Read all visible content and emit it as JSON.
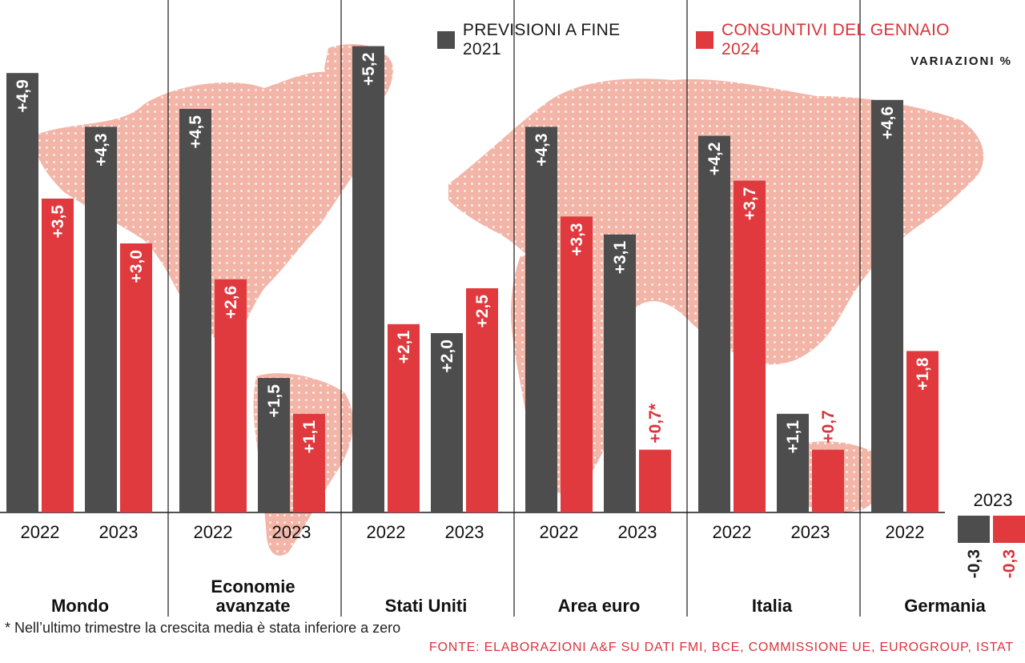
{
  "legend": {
    "forecast": {
      "label": "PREVISIONI A FINE 2021",
      "color": "#4d4d4d"
    },
    "actual": {
      "label": "CONSUNTIVI DEL GENNAIO 2024",
      "color": "#e0393e"
    }
  },
  "unit_label": "VARIAZIONI %",
  "footnote": "* Nell’ultimo trimestre la crescita media è stata inferiore a zero",
  "source": "FONTE: ELABORAZIONI A&F SU DATI FMI, BCE, COMMISSIONE UE, EUROGROUP, ISTAT",
  "colors": {
    "forecast": "#4d4d4d",
    "actual": "#e0393e",
    "map": "#f0b2a6",
    "text_red": "#d8343a"
  },
  "chart_data": {
    "type": "bar",
    "ylabel": "VARIAZIONI %",
    "series": [
      {
        "name": "PREVISIONI A FINE 2021",
        "color": "#4d4d4d"
      },
      {
        "name": "CONSUNTIVI DEL GENNAIO 2024",
        "color": "#e0393e"
      }
    ],
    "groups": [
      {
        "region": "Mondo",
        "years": [
          {
            "year": "2022",
            "forecast": 4.9,
            "forecast_label": "+4,9",
            "actual": 3.5,
            "actual_label": "+3,5"
          },
          {
            "year": "2023",
            "forecast": 4.3,
            "forecast_label": "+4,3",
            "actual": 3.0,
            "actual_label": "+3,0"
          }
        ]
      },
      {
        "region": "Economie avanzate",
        "years": [
          {
            "year": "2022",
            "forecast": 4.5,
            "forecast_label": "+4,5",
            "actual": 2.6,
            "actual_label": "+2,6"
          },
          {
            "year": "2023",
            "forecast": 1.5,
            "forecast_label": "+1,5",
            "actual": 1.1,
            "actual_label": "+1,1"
          }
        ]
      },
      {
        "region": "Stati Uniti",
        "years": [
          {
            "year": "2022",
            "forecast": 5.2,
            "forecast_label": "+5,2",
            "actual": 2.1,
            "actual_label": "+2,1"
          },
          {
            "year": "2023",
            "forecast": 2.0,
            "forecast_label": "+2,0",
            "actual": 2.5,
            "actual_label": "+2,5"
          }
        ]
      },
      {
        "region": "Area euro",
        "years": [
          {
            "year": "2022",
            "forecast": 4.3,
            "forecast_label": "+4,3",
            "actual": 3.3,
            "actual_label": "+3,3"
          },
          {
            "year": "2023",
            "forecast": 3.1,
            "forecast_label": "+3,1",
            "actual": 0.7,
            "actual_label": "+0,7*"
          }
        ]
      },
      {
        "region": "Italia",
        "years": [
          {
            "year": "2022",
            "forecast": 4.2,
            "forecast_label": "+4,2",
            "actual": 3.7,
            "actual_label": "+3,7"
          },
          {
            "year": "2023",
            "forecast": 1.1,
            "forecast_label": "+1,1",
            "actual": 0.7,
            "actual_label": "+0,7"
          }
        ]
      },
      {
        "region": "Germania",
        "years": [
          {
            "year": "2022",
            "forecast": 4.6,
            "forecast_label": "+4,6",
            "actual": 1.8,
            "actual_label": "+1,8"
          },
          {
            "year": "2023",
            "forecast": -0.3,
            "forecast_label": "-0,3",
            "actual": -0.3,
            "actual_label": "-0,3"
          }
        ]
      }
    ]
  }
}
